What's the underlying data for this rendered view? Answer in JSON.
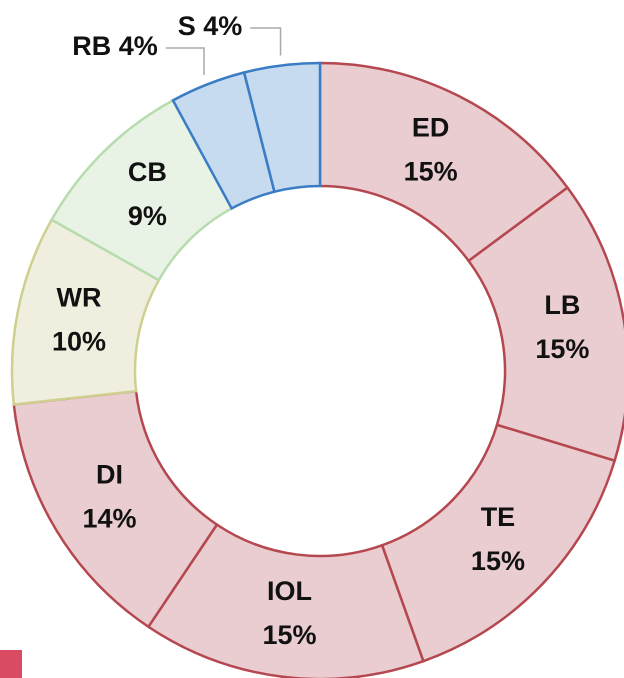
{
  "chart_data": {
    "type": "donut",
    "categories": [
      "ED",
      "LB",
      "TE",
      "IOL",
      "DI",
      "WR",
      "CB",
      "RB",
      "S"
    ],
    "values": [
      15,
      15,
      15,
      15,
      14,
      10,
      9,
      4,
      4
    ],
    "value_labels": [
      "15%",
      "15%",
      "15%",
      "15%",
      "14%",
      "10%",
      "9%",
      "4%",
      "4%"
    ],
    "colors": [
      "#e9cdd0",
      "#e9cdd0",
      "#e9cdd0",
      "#e9cdd0",
      "#e9cdd0",
      "#f0efdf",
      "#e8f3e6",
      "#c6dbef",
      "#c6dbef"
    ],
    "edge_colors": [
      "#b5474f",
      "#b5474f",
      "#b5474f",
      "#b5474f",
      "#b5474f",
      "#cfcf8f",
      "#b7dcae",
      "#3a7cc6",
      "#3a7cc6"
    ]
  }
}
